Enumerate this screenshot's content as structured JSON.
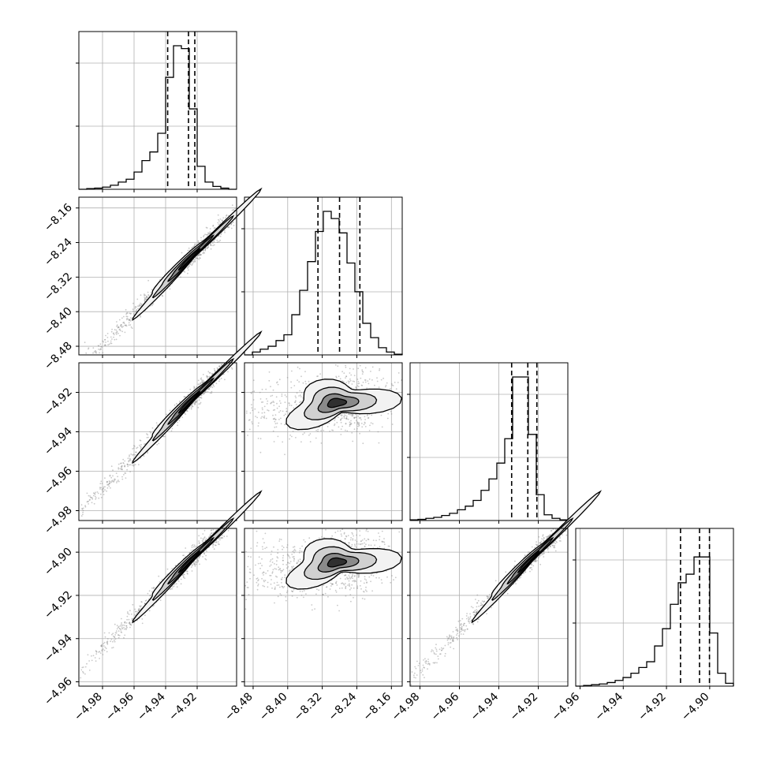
{
  "chart_data": {
    "type": "corner",
    "grid": true,
    "variables": [
      {
        "range": [
          -4.995,
          -4.895
        ],
        "ticks": [
          -4.98,
          -4.96,
          -4.94,
          -4.92
        ],
        "tick_labels": [
          "−4.98",
          "−4.96",
          "−4.94",
          "−4.92"
        ],
        "quantiles": [
          -4.9387,
          -4.9255,
          -4.9215
        ]
      },
      {
        "range": [
          -8.5,
          -8.135
        ],
        "ticks": [
          -8.48,
          -8.4,
          -8.32,
          -8.24,
          -8.16
        ],
        "tick_labels": [
          "−8.48",
          "−8.40",
          "−8.32",
          "−8.24",
          "−8.16"
        ],
        "quantiles": [
          -8.33,
          -8.28,
          -8.233
        ]
      },
      {
        "range": [
          -4.985,
          -4.905
        ],
        "ticks": [
          -4.98,
          -4.96,
          -4.94,
          -4.92
        ],
        "tick_labels": [
          "−4.98",
          "−4.96",
          "−4.94",
          "−4.92"
        ],
        "quantiles": [
          -4.9335,
          -4.9253,
          -4.9207
        ]
      },
      {
        "range": [
          -4.962,
          -4.889
        ],
        "ticks": [
          -4.96,
          -4.94,
          -4.92,
          -4.9
        ],
        "tick_labels": [
          "−4.96",
          "−4.94",
          "−4.92",
          "−4.90"
        ],
        "quantiles": [
          -4.9135,
          -4.9047,
          -4.9001
        ]
      }
    ],
    "histograms": [
      [
        0,
        0.005,
        0.008,
        0.015,
        0.028,
        0.05,
        0.07,
        0.12,
        0.2,
        0.26,
        0.39,
        0.78,
        1.0,
        0.98,
        0.56,
        0.16,
        0.05,
        0.02,
        0.008,
        0
      ],
      [
        0,
        0.02,
        0.04,
        0.06,
        0.1,
        0.14,
        0.28,
        0.45,
        0.65,
        0.86,
        1.0,
        0.95,
        0.85,
        0.64,
        0.44,
        0.22,
        0.12,
        0.05,
        0.02,
        0.005
      ],
      [
        0.005,
        0.008,
        0.015,
        0.022,
        0.035,
        0.05,
        0.075,
        0.1,
        0.14,
        0.21,
        0.29,
        0.4,
        0.57,
        1.0,
        1.0,
        0.6,
        0.18,
        0.04,
        0.015,
        0.005
      ],
      [
        0,
        0.005,
        0.01,
        0.015,
        0.025,
        0.04,
        0.06,
        0.09,
        0.13,
        0.17,
        0.28,
        0.4,
        0.57,
        0.72,
        0.78,
        0.9,
        0.9,
        0.37,
        0.09,
        0.02
      ]
    ],
    "tick_side_y": [
      0.4,
      0.8
    ],
    "tick_side_y_last": [
      0.4,
      0.8
    ]
  }
}
